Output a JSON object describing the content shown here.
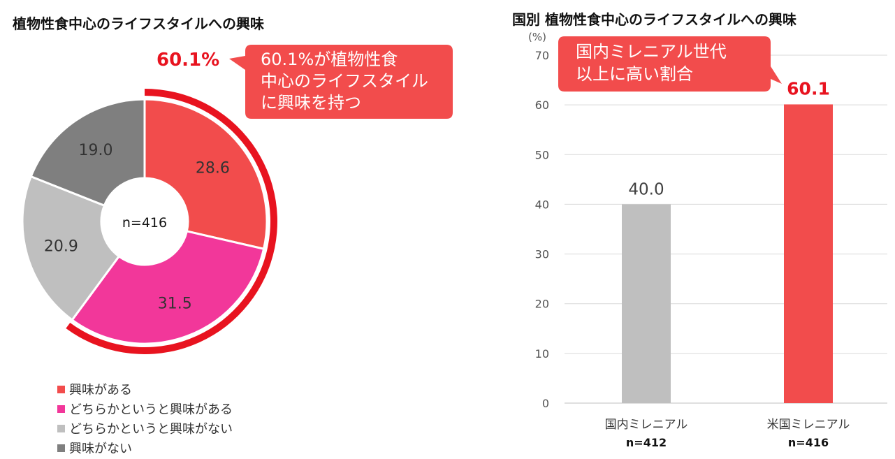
{
  "left_title": "植物性食中心のライフスタイルへの興味",
  "right_title": "国別  植物性食中心のライフスタイルへの興味",
  "donut": {
    "center_label": "n=416",
    "highlight_value": "60.1%",
    "callout_lines": [
      "60.1%が植物性食",
      "中心のライフスタイル",
      "に興味を持つ"
    ],
    "highlight_color": "#e8131f",
    "callout_color": "#f24c4c"
  },
  "bar": {
    "unit_label": "(%)",
    "callout_lines": [
      "国内ミレニアル世代",
      "以上に高い割合"
    ],
    "callout_color": "#f24c4c"
  },
  "legend": [
    {
      "label": "興味がある",
      "color": "#f24c4c"
    },
    {
      "label": "どちらかというと興味がある",
      "color": "#f2379a"
    },
    {
      "label": "どちらかというと興味がない",
      "color": "#bfbfbf"
    },
    {
      "label": "興味がない",
      "color": "#7f7f7f"
    }
  ],
  "chart_data": [
    {
      "type": "pie",
      "title": "植物性食中心のライフスタイルへの興味",
      "categories": [
        "興味がある",
        "どちらかというと興味がある",
        "どちらかというと興味がない",
        "興味がない"
      ],
      "values": [
        28.6,
        31.5,
        20.9,
        19.0
      ],
      "value_labels": [
        "28.6",
        "31.5",
        "20.9",
        "19.0"
      ],
      "colors": [
        "#f24c4c",
        "#f2379a",
        "#bfbfbf",
        "#7f7f7f"
      ],
      "annotation": "n=416",
      "legend_position": "bottom-left"
    },
    {
      "type": "bar",
      "title": "国別  植物性食中心のライフスタイルへの興味",
      "categories": [
        "国内ミレニアル",
        "米国ミレニアル"
      ],
      "category_notes": [
        "n=412",
        "n=416"
      ],
      "values": [
        40.0,
        60.1
      ],
      "value_labels": [
        "40.0",
        "60.1"
      ],
      "colors": [
        "#bfbfbf",
        "#f24c4c"
      ],
      "value_label_colors": [
        "#404040",
        "#e8131f"
      ],
      "ylabel": "(%)",
      "ylim": [
        0,
        70
      ],
      "yticks": [
        0,
        10,
        20,
        30,
        40,
        50,
        60,
        70
      ],
      "grid": true
    }
  ]
}
